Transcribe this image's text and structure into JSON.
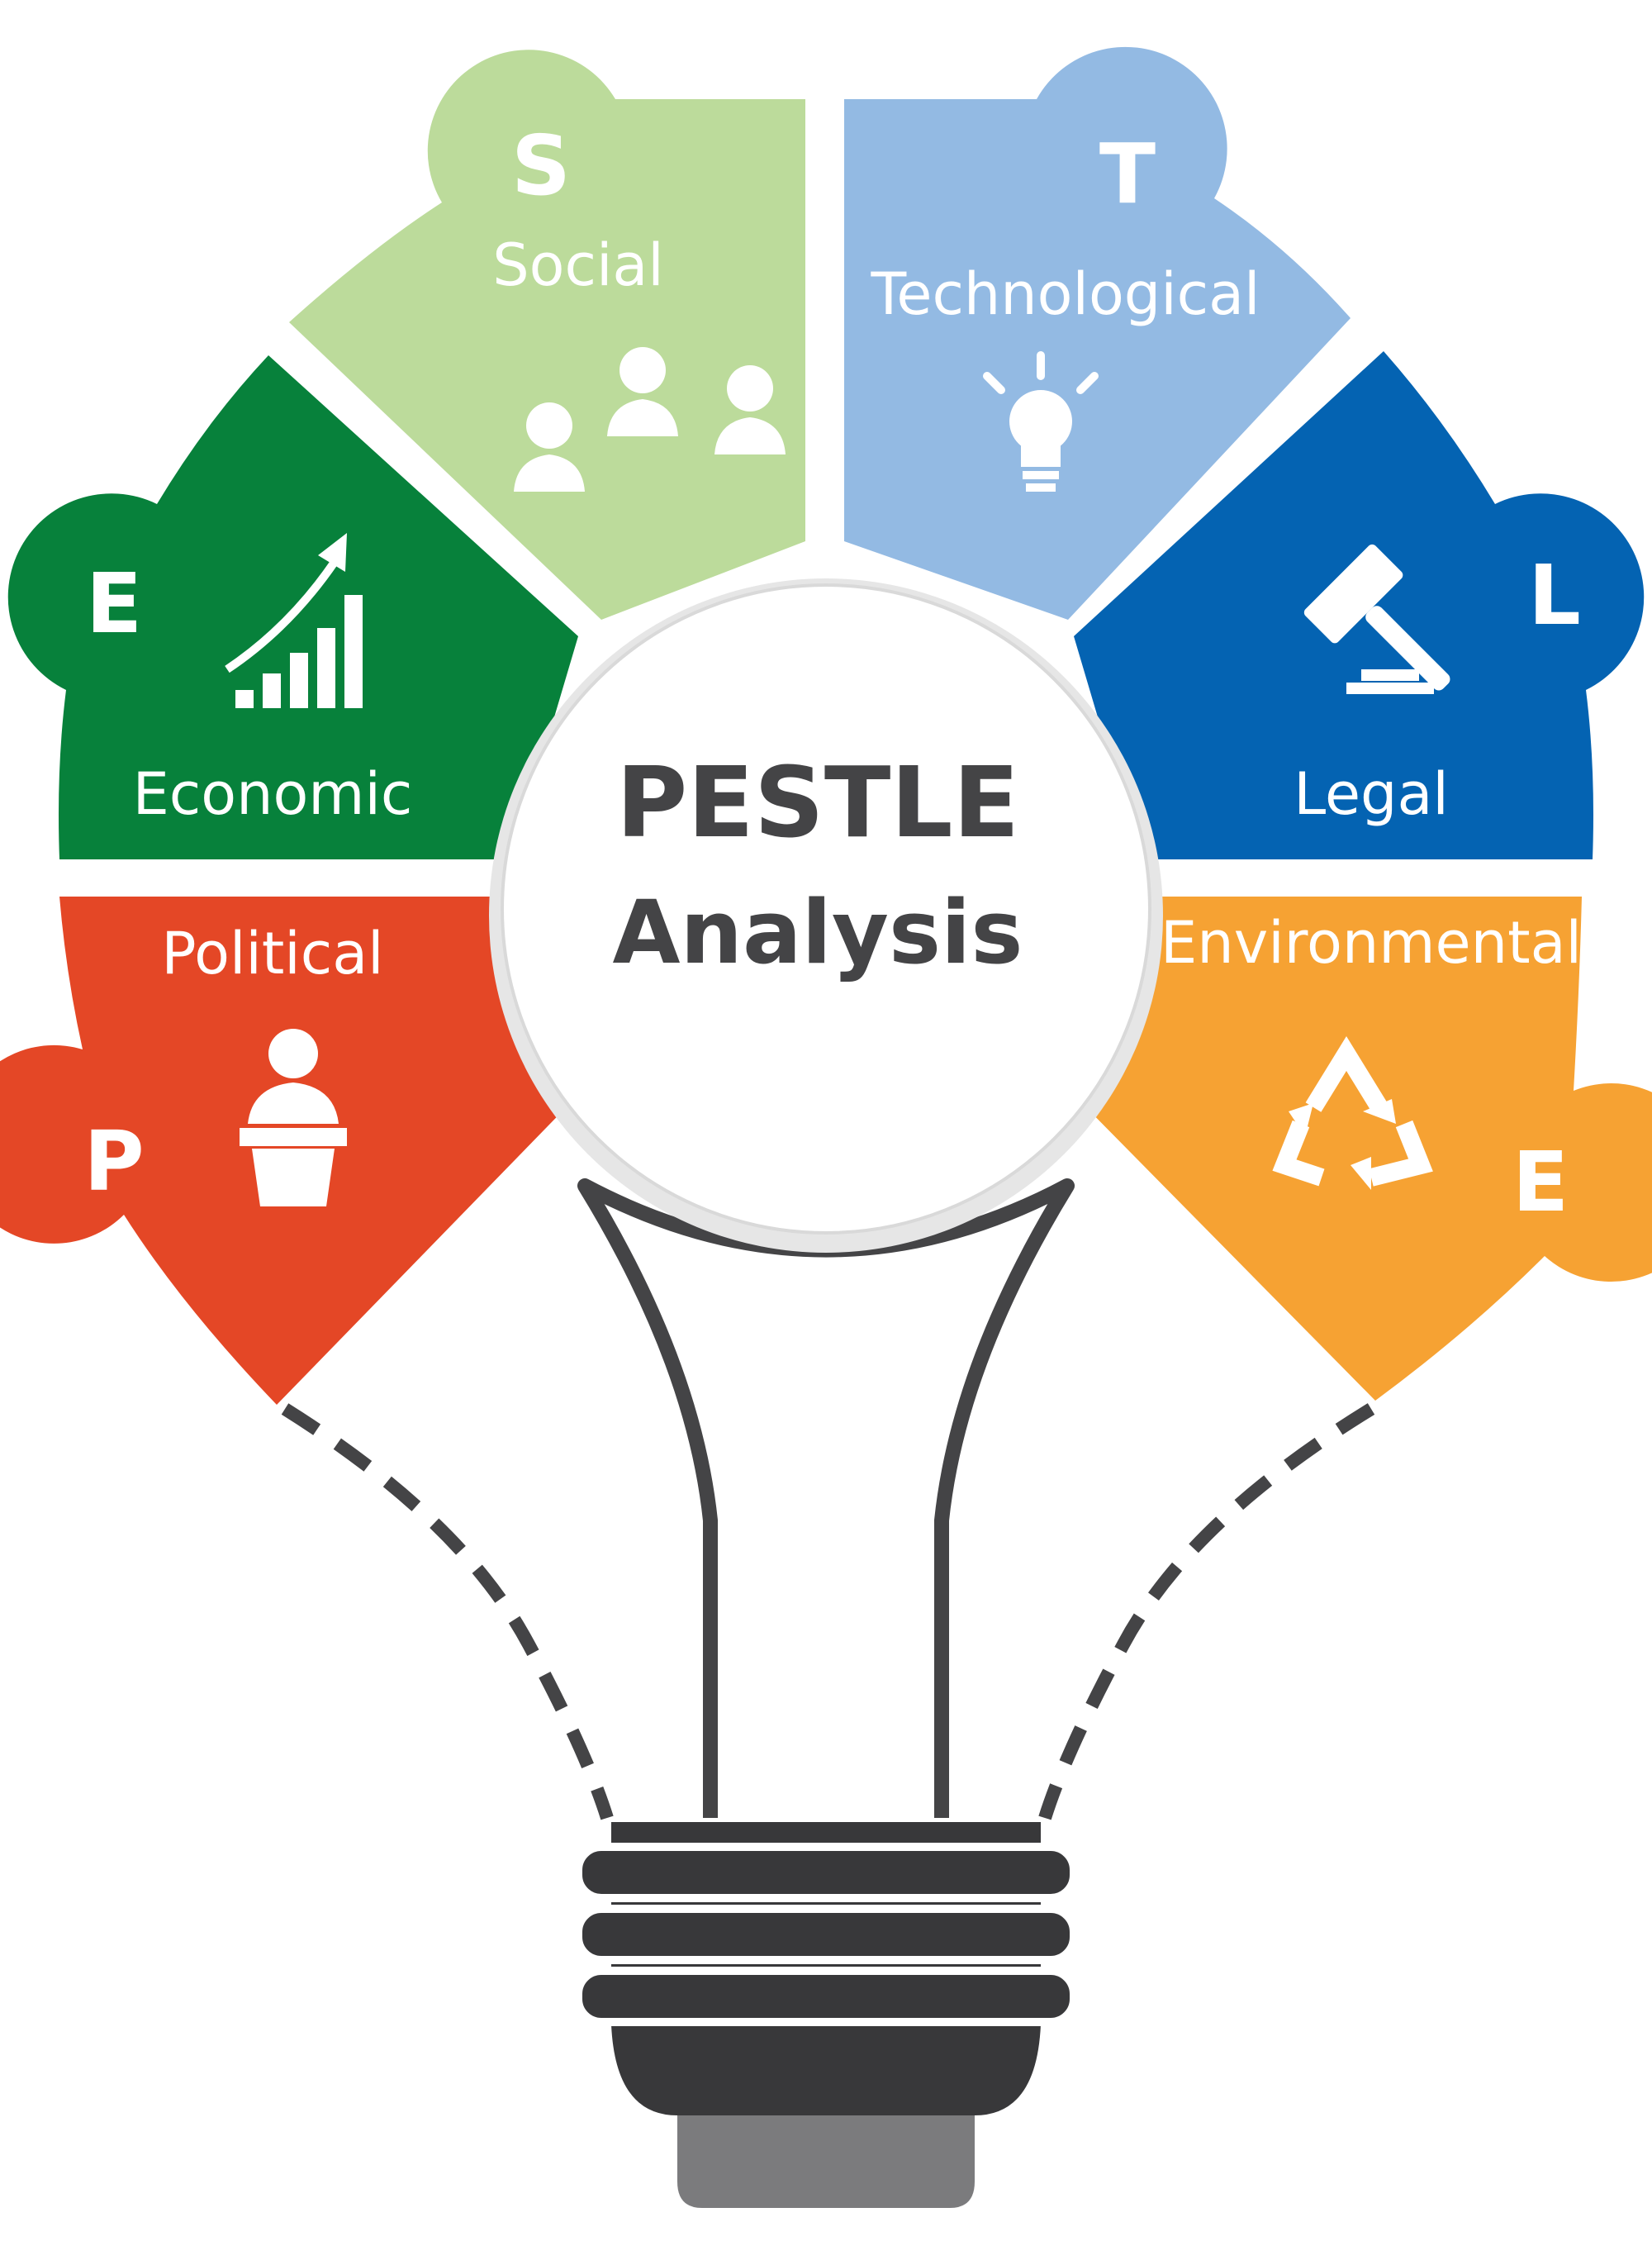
{
  "center": {
    "title": "PESTLE",
    "subtitle": "Analysis"
  },
  "segments": [
    {
      "key": "social",
      "letter": "S",
      "label": "Social",
      "color": "#bcdb9b",
      "icon": "people-group-icon"
    },
    {
      "key": "technological",
      "letter": "T",
      "label": "Technological",
      "color": "#93bae3",
      "icon": "lightbulb-icon"
    },
    {
      "key": "economic",
      "letter": "E",
      "label": "Economic",
      "color": "#07813b",
      "icon": "bar-chart-growth-icon"
    },
    {
      "key": "legal",
      "letter": "L",
      "label": "Legal",
      "color": "#0463b2",
      "icon": "gavel-icon"
    },
    {
      "key": "political",
      "letter": "P",
      "label": "Political",
      "color": "#e44726",
      "icon": "speaker-podium-icon"
    },
    {
      "key": "environmental",
      "letter": "E",
      "label": "Environmental",
      "color": "#f6a233",
      "icon": "recycle-icon"
    }
  ],
  "bulb": {
    "outline_color": "#444446",
    "base_color": "#38383a",
    "tip_color": "#7b7b7d"
  }
}
